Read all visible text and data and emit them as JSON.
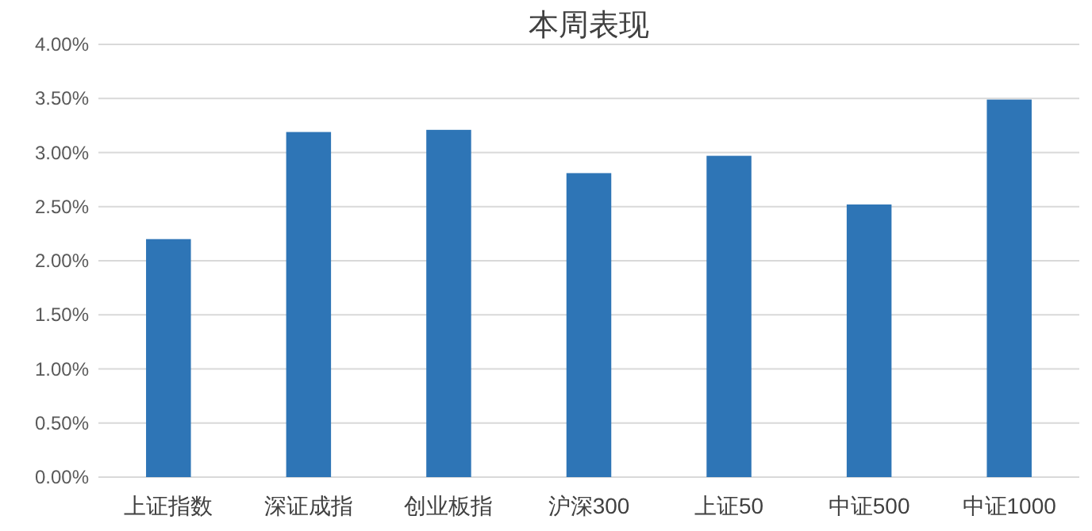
{
  "chart_data": {
    "type": "bar",
    "title": "本周表现",
    "categories": [
      "上证指数",
      "深证成指",
      "创业板指",
      "沪深300",
      "上证50",
      "中证500",
      "中证1000"
    ],
    "values": [
      2.2,
      3.19,
      3.21,
      2.81,
      2.97,
      2.52,
      3.49
    ],
    "color": "#2e75b6",
    "ylim": [
      0,
      4
    ],
    "yticks": [
      {
        "value": 0,
        "label": "0.00%"
      },
      {
        "value": 0.5,
        "label": "0.50%"
      },
      {
        "value": 1,
        "label": "1.00%"
      },
      {
        "value": 1.5,
        "label": "1.50%"
      },
      {
        "value": 2,
        "label": "2.00%"
      },
      {
        "value": 2.5,
        "label": "2.50%"
      },
      {
        "value": 3,
        "label": "3.00%"
      },
      {
        "value": 3.5,
        "label": "3.50%"
      },
      {
        "value": 4,
        "label": "4.00%"
      }
    ],
    "grid": "y"
  }
}
